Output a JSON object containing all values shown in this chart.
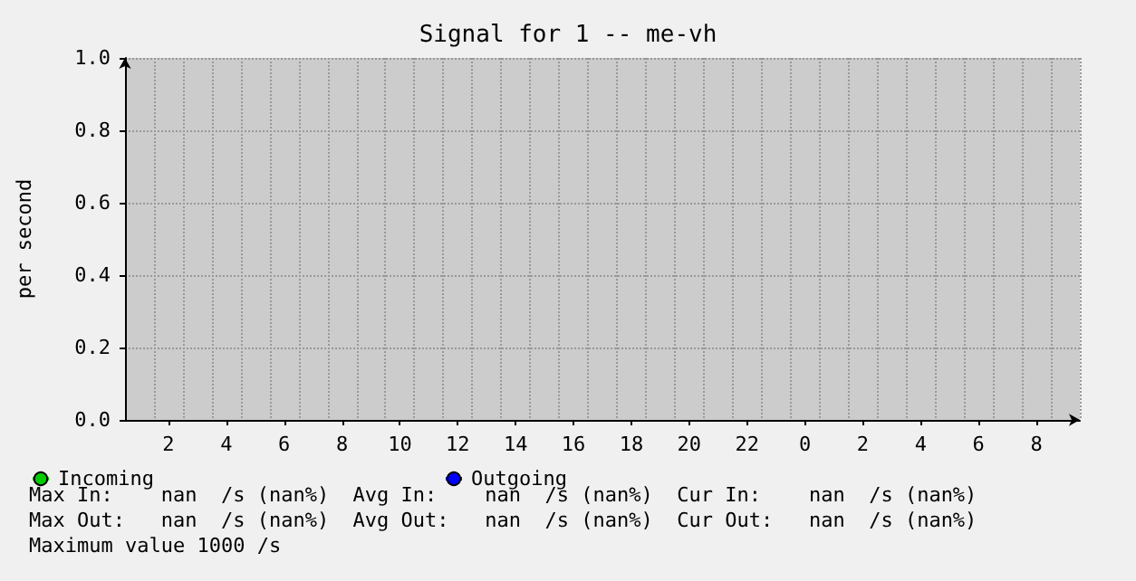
{
  "chart_data": {
    "type": "line",
    "title": "Signal for 1 -- me-vh",
    "ylabel": "per second",
    "categories": [
      null,
      "2",
      null,
      "4",
      null,
      "6",
      null,
      "8",
      null,
      "10",
      null,
      "12",
      null,
      "14",
      null,
      "16",
      null,
      "18",
      null,
      "20",
      null,
      "22",
      null,
      "0",
      null,
      "2",
      null,
      "4",
      null,
      "6",
      null,
      "8",
      null
    ],
    "series": [
      {
        "name": "Incoming",
        "color": "#00cc00",
        "values": [
          null,
          null,
          null,
          null,
          null,
          null,
          null,
          null,
          null,
          null,
          null,
          null,
          null,
          null,
          null,
          null,
          null,
          null,
          null,
          null,
          null,
          null,
          null,
          null,
          null,
          null,
          null,
          null,
          null,
          null,
          null,
          null,
          null
        ]
      },
      {
        "name": "Outgoing",
        "color": "#0000ff",
        "values": [
          null,
          null,
          null,
          null,
          null,
          null,
          null,
          null,
          null,
          null,
          null,
          null,
          null,
          null,
          null,
          null,
          null,
          null,
          null,
          null,
          null,
          null,
          null,
          null,
          null,
          null,
          null,
          null,
          null,
          null,
          null,
          null,
          null
        ]
      }
    ],
    "ylim": [
      0,
      1
    ],
    "yticks": [
      {
        "value": 0,
        "label": "0.0"
      },
      {
        "value": 0.2,
        "label": "0.2"
      },
      {
        "value": 0.4,
        "label": "0.4"
      },
      {
        "value": 0.6,
        "label": "0.6"
      },
      {
        "value": 0.8,
        "label": "0.8"
      },
      {
        "value": 1,
        "label": "1.0"
      }
    ],
    "grid": true,
    "legend": "bottom left",
    "annotations": [
      "Max In:    nan  /s (nan%)  Avg In:    nan  /s (nan%)  Cur In:    nan  /s (nan%)",
      "Max Out:   nan  /s (nan%)  Avg Out:   nan  /s (nan%)  Cur Out:   nan  /s (nan%)",
      "Maximum value 1000 /s"
    ]
  }
}
